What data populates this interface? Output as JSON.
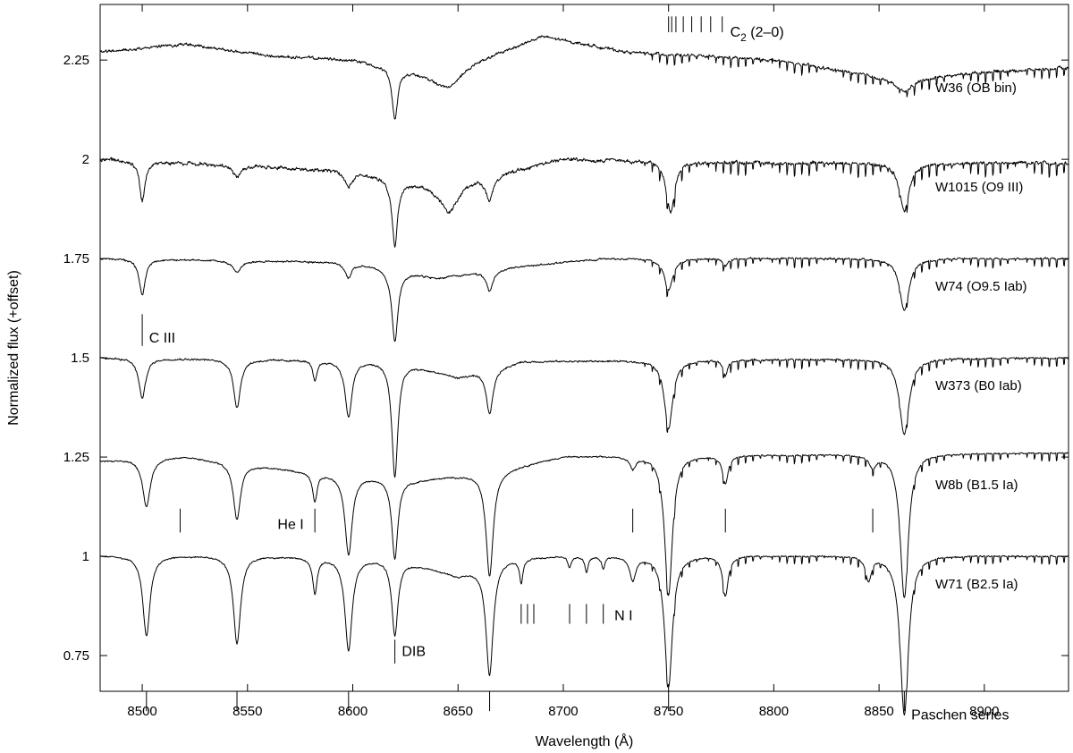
{
  "chart_data": {
    "type": "line",
    "xlabel": "Wavelength (Å)",
    "ylabel": "Normalized flux (+offset)",
    "xlim": [
      8480,
      8940
    ],
    "ylim": [
      0.66,
      2.39
    ],
    "xticks": [
      8500,
      8550,
      8600,
      8650,
      8700,
      8750,
      8800,
      8850,
      8900
    ],
    "yticks": [
      0.75,
      1,
      1.25,
      1.5,
      1.75,
      2,
      2.25
    ],
    "ytick_labels": [
      "0.75",
      "1",
      "1.25",
      "1.5",
      "1.75",
      "2",
      "2.25"
    ],
    "grid": false,
    "series": [
      {
        "name": "W36 (OB bin)",
        "offset": 2.25,
        "continuum": [
          [
            8480,
            0.02
          ],
          [
            8520,
            0.04
          ],
          [
            8560,
            0.01
          ],
          [
            8600,
            0.0
          ],
          [
            8640,
            -0.04
          ],
          [
            8690,
            0.06
          ],
          [
            8730,
            0.02
          ],
          [
            8800,
            0.0
          ],
          [
            8860,
            -0.05
          ],
          [
            8900,
            -0.03
          ],
          [
            8940,
            -0.02
          ]
        ],
        "noise": 0.008,
        "depth_scale": 0.5,
        "lines": [
          [
            8620,
            0.13,
            2.0
          ],
          [
            8646,
            0.04,
            8.0
          ],
          [
            8862,
            0.03,
            6.0
          ]
        ]
      },
      {
        "name": "W1015 (O9 III)",
        "offset": 2.0,
        "continuum": [
          [
            8480,
            0.0
          ],
          [
            8600,
            -0.03
          ],
          [
            8640,
            -0.07
          ],
          [
            8700,
            0.0
          ],
          [
            8800,
            -0.01
          ],
          [
            8940,
            -0.01
          ]
        ],
        "noise": 0.01,
        "depth_scale": 0.65,
        "lines": [
          [
            8500,
            0.1,
            2.0
          ],
          [
            8545,
            0.03,
            2.5
          ],
          [
            8598,
            0.04,
            3.0
          ],
          [
            8620,
            0.17,
            2.0
          ],
          [
            8646,
            0.07,
            6.0
          ],
          [
            8665,
            0.06,
            2.5
          ],
          [
            8751,
            0.13,
            3.0
          ],
          [
            8862,
            0.12,
            3.5
          ]
        ]
      },
      {
        "name": "W74 (O9.5 Iab)",
        "offset": 1.75,
        "continuum": [
          [
            8480,
            0.0
          ],
          [
            8600,
            -0.01
          ],
          [
            8640,
            -0.05
          ],
          [
            8680,
            -0.02
          ],
          [
            8720,
            0.0
          ],
          [
            8940,
            0.0
          ]
        ],
        "noise": 0.005,
        "depth_scale": 0.45,
        "lines": [
          [
            8500,
            0.09,
            2.2
          ],
          [
            8545,
            0.03,
            3.0
          ],
          [
            8598,
            0.04,
            2.5
          ],
          [
            8620,
            0.18,
            2.2
          ],
          [
            8665,
            0.05,
            2.5
          ],
          [
            8750,
            0.08,
            3.0
          ],
          [
            8777,
            0.02,
            1.5
          ],
          [
            8862,
            0.13,
            3.5
          ]
        ]
      },
      {
        "name": "W373 (B0 Iab)",
        "offset": 1.5,
        "continuum": [
          [
            8480,
            0.0
          ],
          [
            8620,
            -0.01
          ],
          [
            8650,
            -0.05
          ],
          [
            8680,
            -0.01
          ],
          [
            8940,
            0.0
          ]
        ],
        "noise": 0.005,
        "depth_scale": 0.45,
        "lines": [
          [
            8500,
            0.1,
            2.5
          ],
          [
            8545,
            0.12,
            2.5
          ],
          [
            8582,
            0.05,
            1.5
          ],
          [
            8598,
            0.14,
            2.5
          ],
          [
            8620,
            0.29,
            2.2
          ],
          [
            8665,
            0.11,
            2.5
          ],
          [
            8750,
            0.17,
            3.0
          ],
          [
            8777,
            0.04,
            1.5
          ],
          [
            8862,
            0.19,
            3.5
          ]
        ]
      },
      {
        "name": "W8b (B1.5 Ia)",
        "offset": 1.25,
        "continuum": [
          [
            8480,
            -0.01
          ],
          [
            8520,
            0.0
          ],
          [
            8580,
            -0.04
          ],
          [
            8630,
            -0.06
          ],
          [
            8665,
            -0.04
          ],
          [
            8700,
            0.0
          ],
          [
            8940,
            0.01
          ]
        ],
        "noise": 0.004,
        "depth_scale": 0.4,
        "lines": [
          [
            8502,
            0.12,
            2.8
          ],
          [
            8545,
            0.14,
            2.6
          ],
          [
            8582,
            0.07,
            1.6
          ],
          [
            8598,
            0.2,
            2.6
          ],
          [
            8620,
            0.2,
            2.2
          ],
          [
            8665,
            0.26,
            2.6
          ],
          [
            8733,
            0.03,
            2.0
          ],
          [
            8750,
            0.35,
            2.8
          ],
          [
            8777,
            0.07,
            2.0
          ],
          [
            8847,
            0.03,
            2.5
          ],
          [
            8862,
            0.36,
            3.0
          ]
        ]
      },
      {
        "name": "W71 (B2.5 Ia)",
        "offset": 1.0,
        "continuum": [
          [
            8480,
            0.0
          ],
          [
            8550,
            0.0
          ],
          [
            8620,
            -0.01
          ],
          [
            8650,
            -0.05
          ],
          [
            8670,
            -0.01
          ],
          [
            8700,
            0.0
          ],
          [
            8940,
            0.0
          ]
        ],
        "noise": 0.004,
        "depth_scale": 0.4,
        "lines": [
          [
            8502,
            0.2,
            2.6
          ],
          [
            8545,
            0.22,
            2.6
          ],
          [
            8582,
            0.09,
            1.6
          ],
          [
            8598,
            0.23,
            2.6
          ],
          [
            8620,
            0.19,
            2.2
          ],
          [
            8665,
            0.28,
            2.6
          ],
          [
            8680,
            0.06,
            1.2
          ],
          [
            8703,
            0.03,
            1.2
          ],
          [
            8711,
            0.04,
            1.2
          ],
          [
            8719,
            0.03,
            1.2
          ],
          [
            8733,
            0.06,
            2.2
          ],
          [
            8750,
            0.33,
            2.8
          ],
          [
            8777,
            0.1,
            2.0
          ],
          [
            8845,
            0.06,
            2.0
          ],
          [
            8862,
            0.4,
            3.0
          ]
        ]
      }
    ],
    "annotations": [
      {
        "label": "C",
        "sub": "2",
        "suffix": " (2–0)",
        "marks": [
          8750,
          8751.5,
          8753.5,
          8757,
          8761,
          8765.5,
          8770,
          8775.5
        ],
        "flux": 2.28,
        "mark_span": [
          2.32,
          2.36
        ],
        "text_at": 8778,
        "text_flux": 2.32
      },
      {
        "label": "C III",
        "marks": [
          8500
        ],
        "flux": 1.57,
        "mark_span": [
          1.53,
          1.61
        ],
        "text_at": 8502,
        "text_flux": 1.55
      },
      {
        "label": "He I",
        "marks": [
          8518,
          8582,
          8733,
          8777,
          8847
        ],
        "mark_span": [
          1.06,
          1.12
        ],
        "text_at": 8563,
        "text_flux": 1.08
      },
      {
        "label": "N I",
        "marks": [
          8680,
          8683,
          8686,
          8703,
          8711,
          8719
        ],
        "mark_span": [
          0.83,
          0.88
        ],
        "text_at": 8723,
        "text_flux": 0.85
      },
      {
        "label": "DIB",
        "marks": [
          8620
        ],
        "mark_span": [
          0.73,
          0.79
        ],
        "text_at": 8622,
        "text_flux": 0.76
      },
      {
        "label": "Paschen series",
        "marks": [
          8502,
          8545,
          8598,
          8665,
          8750,
          8862
        ],
        "mark_span": [
          0.61,
          0.66
        ],
        "text_at": 8864,
        "text_flux": 0.6
      }
    ]
  }
}
